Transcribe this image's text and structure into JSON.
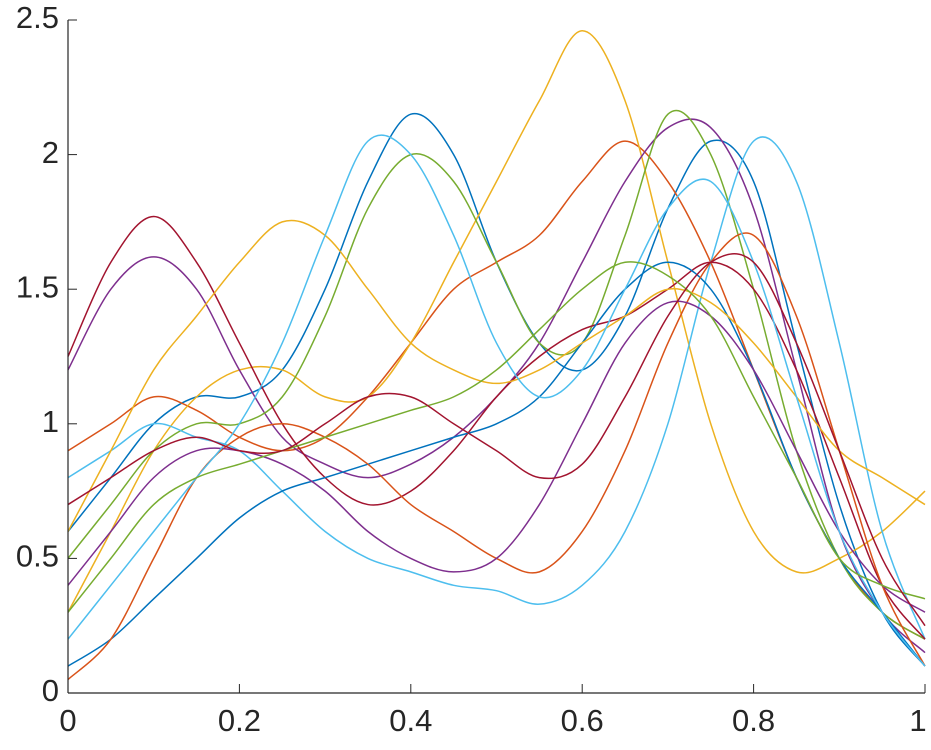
{
  "chart_data": {
    "type": "line",
    "x": [
      0,
      0.05,
      0.1,
      0.15,
      0.2,
      0.25,
      0.3,
      0.35,
      0.4,
      0.45,
      0.5,
      0.55,
      0.6,
      0.65,
      0.7,
      0.75,
      0.8,
      0.85,
      0.9,
      0.95,
      1
    ],
    "series": [
      {
        "color": "#0072BD",
        "values": [
          0.6,
          0.8,
          1.0,
          1.1,
          1.1,
          1.2,
          1.5,
          1.9,
          2.15,
          2.0,
          1.6,
          1.3,
          1.2,
          1.4,
          1.8,
          2.05,
          1.9,
          1.3,
          0.7,
          0.3,
          0.1
        ]
      },
      {
        "color": "#D95319",
        "values": [
          0.9,
          1.0,
          1.1,
          1.05,
          0.95,
          0.9,
          0.95,
          1.1,
          1.3,
          1.5,
          1.6,
          1.7,
          1.9,
          2.05,
          1.9,
          1.6,
          1.2,
          0.8,
          0.5,
          0.3,
          0.2
        ]
      },
      {
        "color": "#EDB120",
        "values": [
          0.3,
          0.6,
          0.9,
          1.1,
          1.2,
          1.2,
          1.1,
          1.1,
          1.3,
          1.6,
          1.9,
          2.2,
          2.46,
          2.2,
          1.6,
          1.0,
          0.6,
          0.45,
          0.5,
          0.6,
          0.75
        ]
      },
      {
        "color": "#7E2F8E",
        "values": [
          1.2,
          1.5,
          1.62,
          1.5,
          1.2,
          0.95,
          0.85,
          0.8,
          0.85,
          0.95,
          1.1,
          1.3,
          1.6,
          1.9,
          2.1,
          2.1,
          1.8,
          1.2,
          0.6,
          0.3,
          0.15
        ]
      },
      {
        "color": "#77AC30",
        "values": [
          0.5,
          0.7,
          0.9,
          1.0,
          1.0,
          1.1,
          1.4,
          1.8,
          2.0,
          1.9,
          1.6,
          1.3,
          1.3,
          1.7,
          2.15,
          2.0,
          1.5,
          0.9,
          0.5,
          0.3,
          0.2
        ]
      },
      {
        "color": "#4DBEEE",
        "values": [
          0.8,
          0.9,
          1.0,
          0.95,
          0.9,
          0.75,
          0.6,
          0.5,
          0.45,
          0.4,
          0.38,
          0.33,
          0.4,
          0.6,
          1.0,
          1.6,
          2.05,
          1.9,
          1.3,
          0.6,
          0.2
        ]
      },
      {
        "color": "#A2142F",
        "values": [
          1.25,
          1.6,
          1.77,
          1.6,
          1.3,
          1.0,
          0.8,
          0.7,
          0.75,
          0.9,
          1.1,
          1.25,
          1.35,
          1.4,
          1.5,
          1.6,
          1.5,
          1.2,
          0.8,
          0.4,
          0.2
        ]
      },
      {
        "color": "#0072BD",
        "values": [
          0.1,
          0.2,
          0.35,
          0.5,
          0.65,
          0.75,
          0.8,
          0.85,
          0.9,
          0.95,
          1.0,
          1.1,
          1.3,
          1.5,
          1.6,
          1.5,
          1.2,
          0.8,
          0.5,
          0.3,
          0.1
        ]
      },
      {
        "color": "#D95319",
        "values": [
          0.05,
          0.2,
          0.5,
          0.8,
          0.95,
          1.0,
          0.95,
          0.85,
          0.7,
          0.6,
          0.5,
          0.45,
          0.6,
          0.9,
          1.3,
          1.6,
          1.7,
          1.4,
          0.9,
          0.4,
          0.1
        ]
      },
      {
        "color": "#EDB120",
        "values": [
          0.6,
          0.9,
          1.2,
          1.4,
          1.6,
          1.75,
          1.7,
          1.5,
          1.3,
          1.2,
          1.15,
          1.2,
          1.3,
          1.4,
          1.5,
          1.45,
          1.3,
          1.1,
          0.9,
          0.8,
          0.7
        ]
      },
      {
        "color": "#7E2F8E",
        "values": [
          0.4,
          0.6,
          0.8,
          0.9,
          0.9,
          0.85,
          0.75,
          0.6,
          0.5,
          0.45,
          0.5,
          0.7,
          1.0,
          1.3,
          1.45,
          1.4,
          1.2,
          0.9,
          0.6,
          0.4,
          0.3
        ]
      },
      {
        "color": "#4DBEEE",
        "values": [
          0.2,
          0.4,
          0.6,
          0.8,
          1.0,
          1.3,
          1.7,
          2.05,
          2.0,
          1.7,
          1.3,
          1.1,
          1.2,
          1.5,
          1.8,
          1.9,
          1.6,
          1.1,
          0.6,
          0.3,
          0.1
        ]
      },
      {
        "color": "#77AC30",
        "values": [
          0.3,
          0.5,
          0.7,
          0.8,
          0.85,
          0.9,
          0.95,
          1.0,
          1.05,
          1.1,
          1.2,
          1.35,
          1.5,
          1.6,
          1.55,
          1.4,
          1.1,
          0.8,
          0.5,
          0.4,
          0.35
        ]
      },
      {
        "color": "#A2142F",
        "values": [
          0.7,
          0.8,
          0.9,
          0.95,
          0.9,
          0.9,
          1.0,
          1.1,
          1.1,
          1.0,
          0.9,
          0.8,
          0.85,
          1.1,
          1.4,
          1.6,
          1.6,
          1.3,
          0.9,
          0.5,
          0.25
        ]
      }
    ],
    "xlim": [
      0,
      1
    ],
    "xticks": [
      0,
      0.2,
      0.4,
      0.6,
      0.8,
      1
    ],
    "ylim": [
      0,
      2.5
    ],
    "yticks": [
      0,
      0.5,
      1,
      1.5,
      2,
      2.5
    ],
    "grid": false
  }
}
